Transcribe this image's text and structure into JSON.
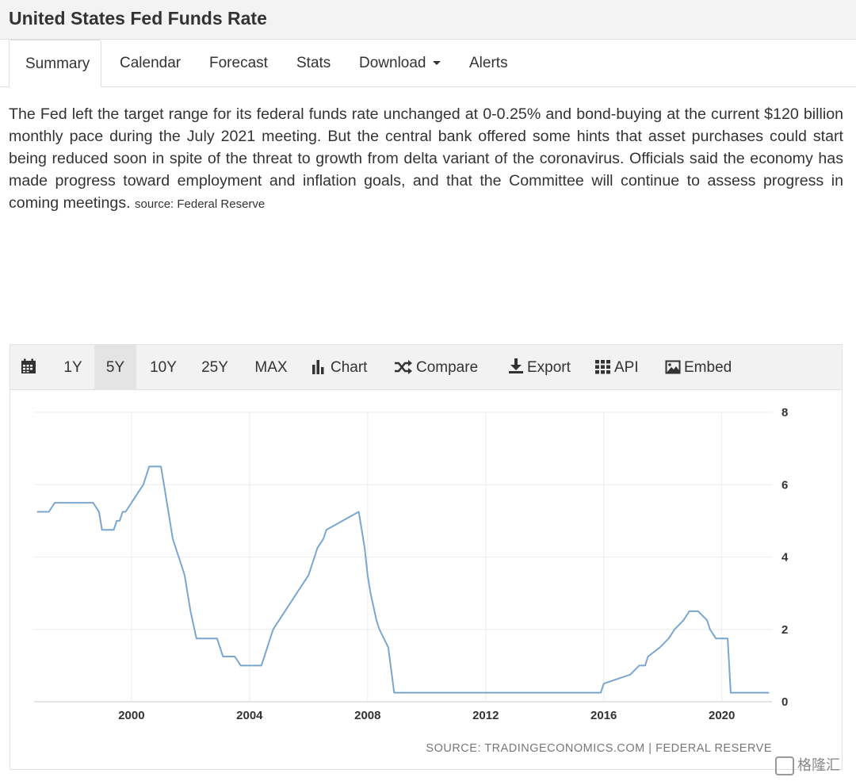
{
  "header": {
    "title": "United States Fed Funds Rate"
  },
  "tabs": [
    {
      "label": "Summary",
      "active": true
    },
    {
      "label": "Calendar"
    },
    {
      "label": "Forecast"
    },
    {
      "label": "Stats"
    },
    {
      "label": "Download",
      "dropdown": true
    },
    {
      "label": "Alerts"
    }
  ],
  "description": {
    "text": "The Fed left the target range for its federal funds rate unchanged at 0-0.25% and bond-buying at the current $120 billion monthly pace during the July 2021 meeting. But the central bank offered some hints that asset purchases could start being reduced soon in spite of the threat to growth from delta variant of the coronavirus. Officials said the economy has made progress toward employment and inflation goals, and that the Committee will continue to assess progress in coming meetings.",
    "source": "source: Federal Reserve"
  },
  "toolbar": {
    "calendar_icon": "calendar-icon",
    "ranges": [
      "1Y",
      "5Y",
      "10Y",
      "25Y",
      "MAX"
    ],
    "active_range": "5Y",
    "chart_label": "Chart",
    "compare_label": "Compare",
    "export_label": "Export",
    "api_label": "API",
    "embed_label": "Embed"
  },
  "chart_data": {
    "type": "line",
    "color": "#7ba6cf",
    "x_ticks": [
      "2000",
      "2004",
      "2008",
      "2012",
      "2016",
      "2020"
    ],
    "y_ticks": [
      "0",
      "2",
      "4",
      "6",
      "8"
    ],
    "xlim": [
      1996.7,
      2021.7
    ],
    "ylim": [
      0,
      8
    ],
    "grid": true,
    "y_axis_side": "right",
    "source_text": "SOURCE: TRADINGECONOMICS.COM | FEDERAL RESERVE",
    "x": [
      1996.8,
      1997.2,
      1997.4,
      1997.5,
      1998.7,
      1998.9,
      1999.0,
      1999.4,
      1999.5,
      1999.6,
      1999.7,
      1999.8,
      2000.0,
      2000.2,
      2000.4,
      2000.5,
      2000.6,
      2001.0,
      2001.1,
      2001.2,
      2001.3,
      2001.4,
      2001.6,
      2001.7,
      2001.8,
      2001.9,
      2002.0,
      2002.2,
      2002.9,
      2003.1,
      2003.5,
      2003.7,
      2004.4,
      2004.5,
      2004.6,
      2004.7,
      2004.8,
      2005.0,
      2005.2,
      2005.4,
      2005.6,
      2005.8,
      2006.0,
      2006.2,
      2006.3,
      2006.5,
      2006.6,
      2007.7,
      2007.8,
      2007.9,
      2008.0,
      2008.1,
      2008.3,
      2008.4,
      2008.7,
      2008.9,
      2009.0,
      2015.9,
      2016.0,
      2016.9,
      2017.2,
      2017.4,
      2017.5,
      2017.9,
      2018.2,
      2018.4,
      2018.7,
      2018.9,
      2019.2,
      2019.5,
      2019.6,
      2019.8,
      2020.2,
      2020.3,
      2020.4,
      2021.6
    ],
    "y": [
      5.25,
      5.25,
      5.5,
      5.5,
      5.5,
      5.25,
      4.75,
      4.75,
      5.0,
      5.0,
      5.25,
      5.25,
      5.5,
      5.75,
      6.0,
      6.25,
      6.5,
      6.5,
      6.0,
      5.5,
      5.0,
      4.5,
      4.0,
      3.75,
      3.5,
      3.0,
      2.5,
      1.75,
      1.75,
      1.25,
      1.25,
      1.0,
      1.0,
      1.25,
      1.5,
      1.75,
      2.0,
      2.25,
      2.5,
      2.75,
      3.0,
      3.25,
      3.5,
      4.0,
      4.25,
      4.5,
      4.75,
      5.25,
      4.75,
      4.25,
      3.5,
      3.0,
      2.25,
      2.0,
      1.5,
      0.25,
      0.25,
      0.25,
      0.5,
      0.75,
      1.0,
      1.0,
      1.25,
      1.5,
      1.75,
      2.0,
      2.25,
      2.5,
      2.5,
      2.25,
      2.0,
      1.75,
      1.75,
      0.25,
      0.25,
      0.25
    ]
  },
  "watermark": {
    "text": "格隆汇"
  }
}
